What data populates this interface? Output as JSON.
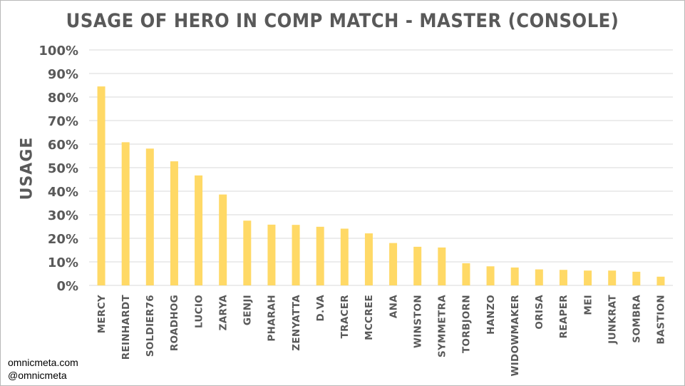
{
  "chart_data": {
    "type": "bar",
    "title": "USAGE OF HERO IN COMP MATCH - MASTER (CONSOLE)",
    "xlabel": "",
    "ylabel": "USAGE",
    "ylim": [
      0,
      100
    ],
    "yticks": [
      "0%",
      "10%",
      "20%",
      "30%",
      "40%",
      "50%",
      "60%",
      "70%",
      "80%",
      "90%",
      "100%"
    ],
    "grid": true,
    "bar_color": "#ffd966",
    "categories": [
      "MERCY",
      "REINHARDT",
      "SOLDIER76",
      "ROADHOG",
      "LUCIO",
      "ZARYA",
      "GENJI",
      "PHARAH",
      "ZENYATTA",
      "D.VA",
      "TRACER",
      "MCCREE",
      "ANA",
      "WINSTON",
      "SYMMETRA",
      "TORBJORN",
      "HANZO",
      "WIDOWMAKER",
      "ORISA",
      "REAPER",
      "MEI",
      "JUNKRAT",
      "SOMBRA",
      "BASTION"
    ],
    "values": [
      84.5,
      60.8,
      58.1,
      52.7,
      46.7,
      38.6,
      27.5,
      25.8,
      25.7,
      24.9,
      24.1,
      22.1,
      18.0,
      16.4,
      16.1,
      9.4,
      8.1,
      7.6,
      6.8,
      6.6,
      6.3,
      6.3,
      5.8,
      3.7
    ]
  },
  "footer": {
    "line1": "omnicmeta.com",
    "line2": "@omnicmeta"
  }
}
